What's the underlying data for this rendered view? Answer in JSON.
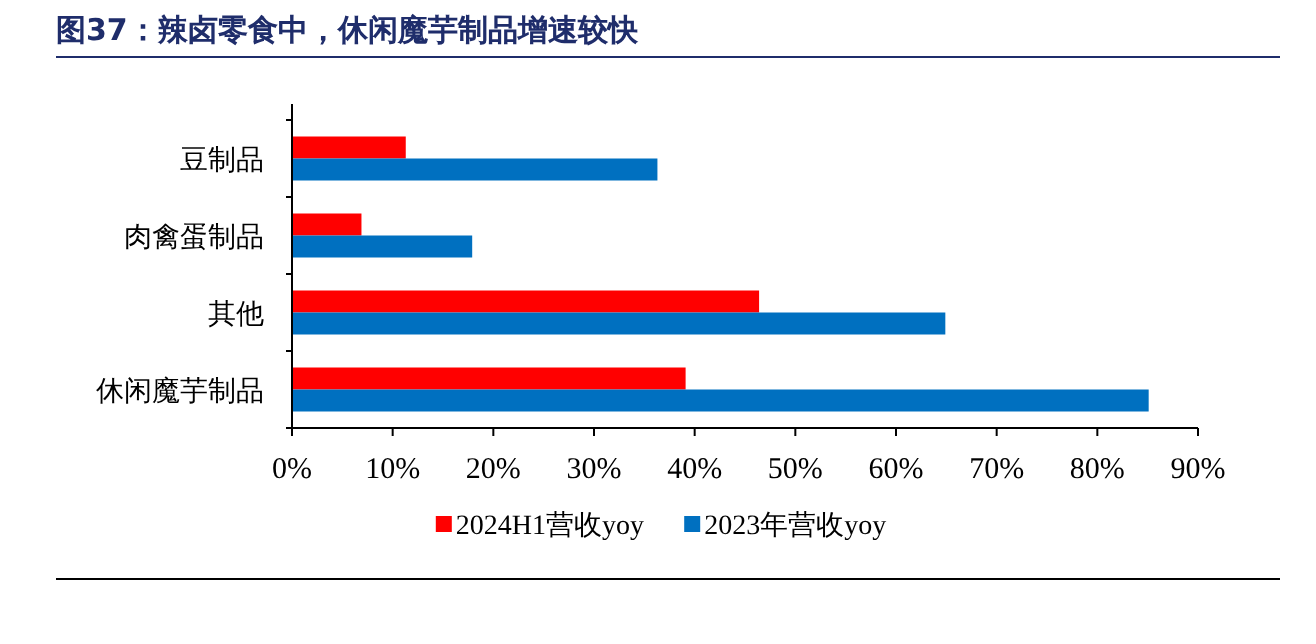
{
  "chart_data": {
    "type": "bar",
    "orientation": "horizontal",
    "title": "图37：辣卤零食中，休闲魔芋制品增速较快",
    "categories": [
      "豆制品",
      "肉禽蛋制品",
      "其他",
      "休闲魔芋制品"
    ],
    "series": [
      {
        "name": "2024H1营收yoy",
        "color": "#ff0000",
        "values": [
          11.3,
          6.9,
          46.4,
          39.1
        ]
      },
      {
        "name": "2023年营收yoy",
        "color": "#0070c0",
        "values": [
          36.3,
          17.9,
          64.9,
          85.1
        ]
      }
    ],
    "xlim": [
      0,
      90
    ],
    "xticks": [
      {
        "value": 0,
        "label": "0%"
      },
      {
        "value": 10,
        "label": "10%"
      },
      {
        "value": 20,
        "label": "20%"
      },
      {
        "value": 30,
        "label": "30%"
      },
      {
        "value": 40,
        "label": "40%"
      },
      {
        "value": 50,
        "label": "50%"
      },
      {
        "value": 60,
        "label": "60%"
      },
      {
        "value": 70,
        "label": "70%"
      },
      {
        "value": 80,
        "label": "80%"
      },
      {
        "value": 90,
        "label": "90%"
      }
    ],
    "legend": "bottom",
    "grid": false
  }
}
